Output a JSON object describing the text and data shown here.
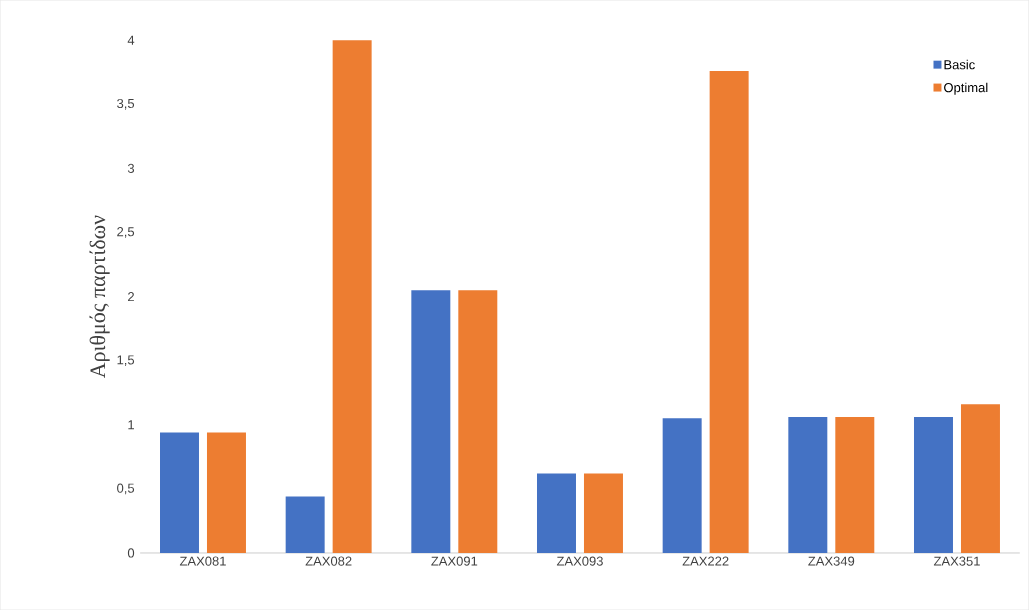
{
  "chart_data": {
    "type": "bar",
    "ylabel": "Αριθμός παρτίδων",
    "categories": [
      "ZAX081",
      "ZAX082",
      "ZAX091",
      "ZAX093",
      "ZAX222",
      "ZAX349",
      "ZAX351"
    ],
    "series": [
      {
        "name": "Basic",
        "color": "#4472c4",
        "values": [
          0.94,
          0.44,
          2.05,
          0.62,
          1.05,
          1.06,
          1.06
        ]
      },
      {
        "name": "Optimal",
        "color": "#ed7d31",
        "values": [
          0.94,
          4.0,
          2.05,
          0.62,
          3.76,
          1.06,
          1.16
        ]
      }
    ],
    "ylim": [
      0,
      4
    ],
    "yticks": [
      0,
      {
        "value": 0.5,
        "label": "0,5"
      },
      1,
      {
        "value": 1.5,
        "label": "1,5"
      },
      2,
      {
        "value": 2.5,
        "label": "2,5"
      },
      3,
      {
        "value": 3.5,
        "label": "3,5"
      },
      4
    ],
    "grid": false,
    "legend": "top right"
  }
}
